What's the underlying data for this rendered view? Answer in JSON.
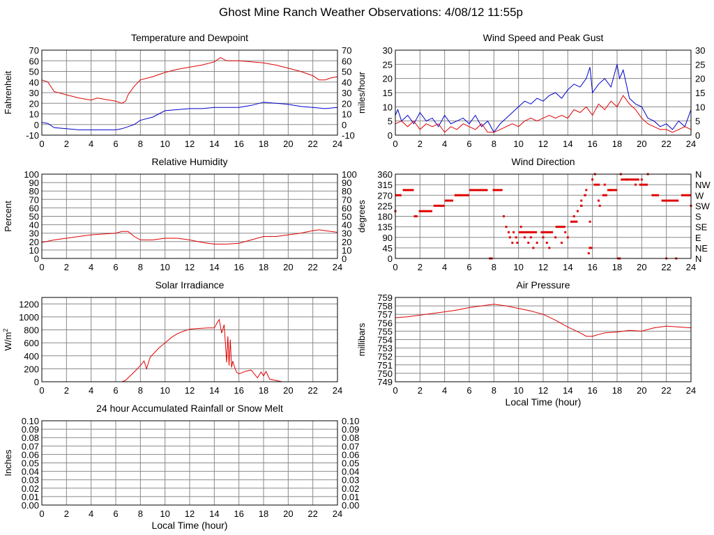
{
  "page_title": "Ghost Mine Ranch Weather Observations: 4/08/12 11:55p",
  "colors": {
    "series_red": "#e00000",
    "series_blue": "#0000cc",
    "grid": "#888888",
    "frame": "#000000"
  },
  "chart_data": [
    {
      "id": "temp",
      "type": "line",
      "title": "Temperature and Dewpoint",
      "ylabel": "Fahrenheit",
      "xlabel": "",
      "xlim": [
        0,
        24
      ],
      "ylim": [
        -10,
        70
      ],
      "xticks": [
        0,
        2,
        4,
        6,
        8,
        10,
        12,
        14,
        16,
        18,
        20,
        22,
        24
      ],
      "yticks": [
        -10,
        0,
        10,
        20,
        30,
        40,
        50,
        60,
        70
      ],
      "right_ticks": true,
      "grid": true,
      "series": [
        {
          "color": "#e00000",
          "x": [
            0,
            0.5,
            1,
            2,
            3,
            4,
            4.5,
            5,
            5.5,
            6,
            6.5,
            6.8,
            7,
            7.5,
            8,
            9,
            10,
            11,
            12,
            13,
            14,
            14.5,
            15,
            16,
            17,
            18,
            19,
            20,
            21,
            22,
            22.5,
            23,
            23.5,
            24
          ],
          "y": [
            42,
            40,
            31,
            28,
            25,
            23,
            25,
            24,
            23,
            22,
            20,
            22,
            28,
            36,
            42,
            45,
            49,
            52,
            54,
            56,
            59,
            63,
            60,
            60,
            59,
            58,
            56,
            53,
            50,
            46,
            42,
            42,
            44,
            45
          ]
        },
        {
          "color": "#0000cc",
          "x": [
            0,
            0.5,
            1,
            2,
            3,
            4,
            5,
            6,
            6.5,
            7,
            7.5,
            8,
            9,
            10,
            11,
            12,
            13,
            14,
            15,
            16,
            17,
            18,
            19,
            20,
            21,
            22,
            23,
            24
          ],
          "y": [
            2,
            1,
            -3,
            -4,
            -5,
            -5,
            -5,
            -5,
            -4,
            -2,
            0,
            4,
            7,
            13,
            14,
            15,
            15,
            16,
            16,
            16,
            18,
            21,
            20,
            19,
            17,
            16,
            15,
            16
          ]
        }
      ]
    },
    {
      "id": "wind",
      "type": "line",
      "title": "Wind Speed and Peak Gust",
      "ylabel": "miles/hour",
      "xlabel": "",
      "xlim": [
        0,
        24
      ],
      "ylim": [
        0,
        30
      ],
      "xticks": [
        0,
        2,
        4,
        6,
        8,
        10,
        12,
        14,
        16,
        18,
        20,
        22,
        24
      ],
      "yticks": [
        0,
        5,
        10,
        15,
        20,
        25,
        30
      ],
      "right_ticks": true,
      "grid": true,
      "series": [
        {
          "color": "#0000cc",
          "x": [
            0,
            0.2,
            0.5,
            1,
            1.5,
            2,
            2.5,
            3,
            3.5,
            4,
            4.5,
            5,
            5.5,
            6,
            6.5,
            7,
            7.5,
            8,
            8.5,
            9,
            9.5,
            10,
            10.5,
            11,
            11.5,
            12,
            12.5,
            13,
            13.5,
            14,
            14.5,
            15,
            15.5,
            15.8,
            16,
            16.5,
            17,
            17.5,
            18,
            18.2,
            18.5,
            18.8,
            19,
            19.5,
            20,
            20.5,
            21,
            21.5,
            22,
            22.5,
            23,
            23.5,
            24
          ],
          "y": [
            7,
            9,
            5,
            7,
            4,
            8,
            5,
            6,
            3,
            7,
            4,
            5,
            6,
            4,
            7,
            3,
            5,
            1,
            4,
            6,
            8,
            10,
            12,
            11,
            13,
            12,
            14,
            15,
            13,
            16,
            18,
            17,
            20,
            24,
            15,
            18,
            20,
            17,
            25,
            20,
            23,
            17,
            13,
            11,
            10,
            6,
            5,
            3,
            4,
            2,
            5,
            3,
            9
          ]
        },
        {
          "color": "#e00000",
          "x": [
            0,
            0.5,
            1,
            1.5,
            2,
            2.5,
            3,
            3.5,
            4,
            4.5,
            5,
            5.5,
            6,
            6.5,
            7,
            7.5,
            8,
            8.5,
            9,
            9.5,
            10,
            10.5,
            11,
            11.5,
            12,
            12.5,
            13,
            13.5,
            14,
            14.5,
            15,
            15.5,
            16,
            16.5,
            17,
            17.5,
            18,
            18.5,
            19,
            19.5,
            20,
            20.5,
            21,
            21.5,
            22,
            22.5,
            23,
            23.5,
            24
          ],
          "y": [
            4,
            5,
            3,
            5,
            2,
            4,
            3,
            4,
            1,
            3,
            2,
            4,
            3,
            2,
            4,
            1,
            1,
            2,
            3,
            4,
            3,
            5,
            6,
            5,
            6,
            7,
            6,
            7,
            6,
            9,
            8,
            10,
            7,
            11,
            9,
            12,
            10,
            14,
            11,
            9,
            6,
            4,
            3,
            2,
            2,
            1,
            2,
            3,
            2
          ]
        }
      ]
    },
    {
      "id": "humidity",
      "type": "line",
      "title": "Relative Humidity",
      "ylabel": "Percent",
      "xlabel": "",
      "xlim": [
        0,
        24
      ],
      "ylim": [
        0,
        100
      ],
      "xticks": [
        0,
        2,
        4,
        6,
        8,
        10,
        12,
        14,
        16,
        18,
        20,
        22,
        24
      ],
      "yticks": [
        0,
        10,
        20,
        30,
        40,
        50,
        60,
        70,
        80,
        90,
        100
      ],
      "right_ticks": true,
      "grid": true,
      "series": [
        {
          "color": "#e00000",
          "x": [
            0,
            1,
            2,
            3,
            4,
            5,
            6,
            6.5,
            7,
            7.5,
            8,
            9,
            10,
            11,
            12,
            13,
            14,
            15,
            16,
            17,
            18,
            19,
            20,
            21,
            22,
            22.5,
            23,
            24
          ],
          "y": [
            19,
            22,
            24,
            26,
            28,
            29,
            30,
            32,
            32,
            26,
            22,
            22,
            24,
            24,
            22,
            19,
            17,
            17,
            18,
            22,
            26,
            26,
            28,
            30,
            33,
            34,
            33,
            31
          ]
        }
      ]
    },
    {
      "id": "direction",
      "type": "scatter",
      "title": "Wind Direction",
      "ylabel": "degrees",
      "xlabel": "",
      "xlim": [
        0,
        24
      ],
      "ylim": [
        0,
        360
      ],
      "xticks": [
        0,
        2,
        4,
        6,
        8,
        10,
        12,
        14,
        16,
        18,
        20,
        22,
        24
      ],
      "yticks": [
        0,
        45,
        90,
        135,
        180,
        225,
        270,
        315,
        360
      ],
      "right_labels": [
        "N",
        "NE",
        "E",
        "SE",
        "S",
        "SW",
        "W",
        "NW",
        "N"
      ],
      "grid": true,
      "segments": [
        [
          0,
          0.5,
          270
        ],
        [
          0.6,
          1.5,
          292
        ],
        [
          1.5,
          1.8,
          180
        ],
        [
          1.9,
          3.0,
          202
        ],
        [
          3.1,
          4.0,
          225
        ],
        [
          4.0,
          4.7,
          247
        ],
        [
          4.8,
          6.0,
          270
        ],
        [
          6.0,
          7.5,
          292
        ],
        [
          7.6,
          7.9,
          0
        ],
        [
          7.9,
          8.7,
          292
        ],
        [
          10.0,
          11.5,
          112
        ],
        [
          11.8,
          12.8,
          112
        ],
        [
          13.0,
          13.8,
          135
        ],
        [
          14.2,
          14.8,
          157
        ],
        [
          15.0,
          15.2,
          225
        ],
        [
          15.3,
          15.5,
          270
        ],
        [
          15.7,
          16.0,
          45
        ],
        [
          16.1,
          16.6,
          315
        ],
        [
          16.8,
          17.2,
          270
        ],
        [
          17.2,
          18.0,
          292
        ],
        [
          18.0,
          18.3,
          0
        ],
        [
          18.3,
          19.8,
          337
        ],
        [
          19.8,
          20.5,
          315
        ],
        [
          20.8,
          21.4,
          270
        ],
        [
          21.6,
          23.0,
          247
        ],
        [
          23.2,
          24.0,
          270
        ]
      ],
      "points": [
        [
          0,
          202
        ],
        [
          8.8,
          180
        ],
        [
          9.0,
          135
        ],
        [
          9.2,
          112
        ],
        [
          9.3,
          90
        ],
        [
          9.5,
          67
        ],
        [
          9.6,
          112
        ],
        [
          9.8,
          90
        ],
        [
          9.9,
          67
        ],
        [
          10.2,
          135
        ],
        [
          10.5,
          90
        ],
        [
          10.8,
          67
        ],
        [
          11.0,
          90
        ],
        [
          11.2,
          45
        ],
        [
          11.5,
          67
        ],
        [
          12.0,
          90
        ],
        [
          12.3,
          67
        ],
        [
          12.5,
          45
        ],
        [
          13.0,
          90
        ],
        [
          13.5,
          67
        ],
        [
          13.8,
          112
        ],
        [
          14.0,
          90
        ],
        [
          14.5,
          180
        ],
        [
          14.8,
          202
        ],
        [
          15.1,
          247
        ],
        [
          15.5,
          292
        ],
        [
          15.7,
          22
        ],
        [
          15.8,
          157
        ],
        [
          16.0,
          337
        ],
        [
          16.2,
          360
        ],
        [
          16.5,
          247
        ],
        [
          16.6,
          225
        ],
        [
          17.0,
          315
        ],
        [
          17.5,
          292
        ],
        [
          18.3,
          360
        ],
        [
          18.8,
          337
        ],
        [
          19.5,
          315
        ],
        [
          20.0,
          337
        ],
        [
          20.5,
          360
        ],
        [
          22.0,
          0
        ],
        [
          22.8,
          0
        ],
        [
          24.0,
          225
        ]
      ]
    },
    {
      "id": "solar",
      "type": "line",
      "title": "Solar Irradiance",
      "ylabel": "W/m2",
      "xlabel": "",
      "xlim": [
        0,
        24
      ],
      "ylim": [
        0,
        1300
      ],
      "xticks": [
        0,
        2,
        4,
        6,
        8,
        10,
        12,
        14,
        16,
        18,
        20,
        22,
        24
      ],
      "yticks": [
        0,
        200,
        400,
        600,
        800,
        1000,
        1200
      ],
      "right_ticks": false,
      "grid": true,
      "series": [
        {
          "color": "#e00000",
          "x": [
            0,
            6.5,
            6.8,
            7,
            7.5,
            8,
            8.3,
            8.5,
            8.8,
            9,
            9.5,
            10,
            10.5,
            11,
            11.5,
            12,
            12.5,
            13,
            13.5,
            14,
            14.2,
            14.4,
            14.6,
            14.8,
            15.0,
            15.1,
            15.2,
            15.3,
            15.4,
            15.5,
            15.6,
            15.8,
            16,
            16.5,
            17,
            17.5,
            17.8,
            18,
            18.2,
            18.5,
            19,
            19.5,
            20,
            24
          ],
          "y": [
            0,
            0,
            20,
            60,
            150,
            250,
            320,
            200,
            380,
            420,
            520,
            600,
            680,
            740,
            780,
            810,
            820,
            825,
            830,
            830,
            900,
            960,
            750,
            880,
            300,
            700,
            250,
            650,
            220,
            320,
            250,
            150,
            120,
            160,
            180,
            60,
            150,
            90,
            160,
            40,
            20,
            0,
            0,
            0
          ]
        }
      ]
    },
    {
      "id": "pressure",
      "type": "line",
      "title": "Air Pressure",
      "ylabel": "millibars",
      "xlabel": "Local Time (hour)",
      "xlim": [
        0,
        24
      ],
      "ylim": [
        749,
        759
      ],
      "xticks": [
        0,
        2,
        4,
        6,
        8,
        10,
        12,
        14,
        16,
        18,
        20,
        22,
        24
      ],
      "yticks": [
        749,
        750,
        751,
        752,
        753,
        754,
        755,
        756,
        757,
        758,
        759
      ],
      "right_ticks": false,
      "grid": true,
      "series": [
        {
          "color": "#e00000",
          "x": [
            0,
            1,
            2,
            3,
            4,
            5,
            6,
            7,
            7.5,
            8,
            9,
            10,
            11,
            12,
            13,
            14,
            15,
            15.5,
            16,
            16.5,
            17,
            18,
            19,
            20,
            21,
            21.5,
            22,
            23,
            24
          ],
          "y": [
            756.6,
            756.7,
            756.9,
            757.1,
            757.3,
            757.5,
            757.8,
            758.0,
            758.1,
            758.2,
            758.0,
            757.7,
            757.4,
            757.0,
            756.3,
            755.5,
            754.8,
            754.4,
            754.4,
            754.6,
            754.8,
            754.9,
            755.1,
            755.0,
            755.4,
            755.5,
            755.6,
            755.5,
            755.4
          ]
        }
      ]
    },
    {
      "id": "rain",
      "type": "line",
      "title": "24 hour Accumulated Rainfall or Snow Melt",
      "ylabel": "Inches",
      "xlabel": "Local Time (hour)",
      "xlim": [
        0,
        24
      ],
      "ylim": [
        0,
        0.1
      ],
      "xticks": [
        0,
        2,
        4,
        6,
        8,
        10,
        12,
        14,
        16,
        18,
        20,
        22,
        24
      ],
      "yticks": [
        0.0,
        0.01,
        0.02,
        0.03,
        0.04,
        0.05,
        0.06,
        0.07,
        0.08,
        0.09,
        0.1
      ],
      "right_ticks": true,
      "grid": true,
      "series": [
        {
          "color": "#e00000",
          "x": [
            0,
            24
          ],
          "y": [
            0,
            0
          ]
        }
      ]
    }
  ]
}
